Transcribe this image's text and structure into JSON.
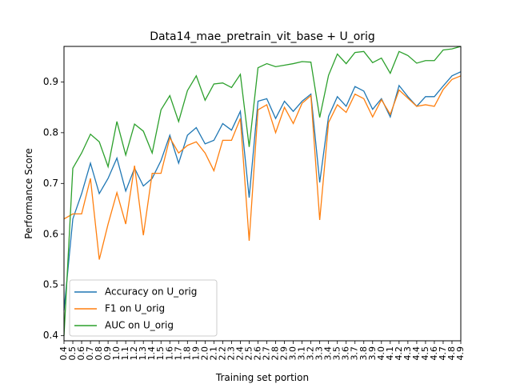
{
  "chart_data": {
    "type": "line",
    "title": "Data14_mae_pretrain_vit_base + U_orig",
    "xlabel": "Training set portion",
    "ylabel": "Performance Score",
    "xlim": [
      0.4,
      4.9
    ],
    "ylim": [
      0.39,
      0.97
    ],
    "grid": false,
    "legend_position": "lower-left",
    "x_tick_labels": [
      "0.4",
      "0.5",
      "0.6",
      "0.7",
      "0.8",
      "0.9",
      "1.0",
      "1.1",
      "1.2",
      "1.3",
      "1.4",
      "1.5",
      "1.6",
      "1.7",
      "1.8",
      "1.9",
      "2.0",
      "2.1",
      "2.2",
      "2.3",
      "2.4",
      "2.5",
      "2.6",
      "2.7",
      "2.8",
      "2.9",
      "3.0",
      "3.1",
      "3.2",
      "3.3",
      "3.4",
      "3.5",
      "3.6",
      "3.7",
      "3.8",
      "3.9",
      "4.0",
      "4.1",
      "4.2",
      "4.3",
      "4.4",
      "4.5",
      "4.6",
      "4.7",
      "4.8",
      "4.9"
    ],
    "y_ticks": [
      0.4,
      0.5,
      0.6,
      0.7,
      0.8,
      0.9
    ],
    "y_tick_labels": [
      "0.4",
      "0.5",
      "0.6",
      "0.7",
      "0.8",
      "0.9"
    ],
    "x": [
      0.4,
      0.5,
      0.6,
      0.7,
      0.8,
      0.9,
      1.0,
      1.1,
      1.2,
      1.3,
      1.4,
      1.5,
      1.6,
      1.7,
      1.8,
      1.9,
      2.0,
      2.1,
      2.2,
      2.3,
      2.4,
      2.5,
      2.6,
      2.7,
      2.8,
      2.9,
      3.0,
      3.1,
      3.2,
      3.3,
      3.4,
      3.5,
      3.6,
      3.7,
      3.8,
      3.9,
      4.0,
      4.1,
      4.2,
      4.3,
      4.4,
      4.5,
      4.6,
      4.7,
      4.8,
      4.9
    ],
    "series": [
      {
        "name": "Accuracy on U_orig",
        "color": "#1f77b4",
        "values": [
          0.45,
          0.63,
          0.68,
          0.74,
          0.68,
          0.71,
          0.75,
          0.685,
          0.73,
          0.695,
          0.71,
          0.745,
          0.795,
          0.74,
          0.795,
          0.81,
          0.778,
          0.785,
          0.818,
          0.805,
          0.842,
          0.672,
          0.862,
          0.867,
          0.828,
          0.862,
          0.842,
          0.862,
          0.876,
          0.702,
          0.832,
          0.871,
          0.852,
          0.891,
          0.882,
          0.846,
          0.867,
          0.831,
          0.893,
          0.871,
          0.852,
          0.871,
          0.871,
          0.892,
          0.912,
          0.92
        ]
      },
      {
        "name": "F1 on U_orig",
        "color": "#ff7f0e",
        "values": [
          0.63,
          0.64,
          0.64,
          0.71,
          0.55,
          0.62,
          0.682,
          0.62,
          0.735,
          0.598,
          0.72,
          0.72,
          0.79,
          0.76,
          0.775,
          0.782,
          0.76,
          0.725,
          0.785,
          0.785,
          0.828,
          0.587,
          0.845,
          0.855,
          0.8,
          0.85,
          0.818,
          0.858,
          0.873,
          0.628,
          0.82,
          0.855,
          0.84,
          0.876,
          0.867,
          0.831,
          0.865,
          0.836,
          0.884,
          0.868,
          0.852,
          0.855,
          0.852,
          0.885,
          0.905,
          0.912
        ]
      },
      {
        "name": "AUC on U_orig",
        "color": "#2ca02c",
        "values": [
          0.4,
          0.73,
          0.76,
          0.797,
          0.782,
          0.733,
          0.822,
          0.756,
          0.817,
          0.803,
          0.76,
          0.845,
          0.873,
          0.822,
          0.883,
          0.912,
          0.864,
          0.896,
          0.898,
          0.889,
          0.915,
          0.772,
          0.928,
          0.936,
          0.93,
          0.933,
          0.936,
          0.94,
          0.939,
          0.83,
          0.913,
          0.955,
          0.936,
          0.958,
          0.96,
          0.938,
          0.947,
          0.917,
          0.96,
          0.952,
          0.937,
          0.942,
          0.942,
          0.963,
          0.965,
          0.97
        ]
      }
    ]
  }
}
